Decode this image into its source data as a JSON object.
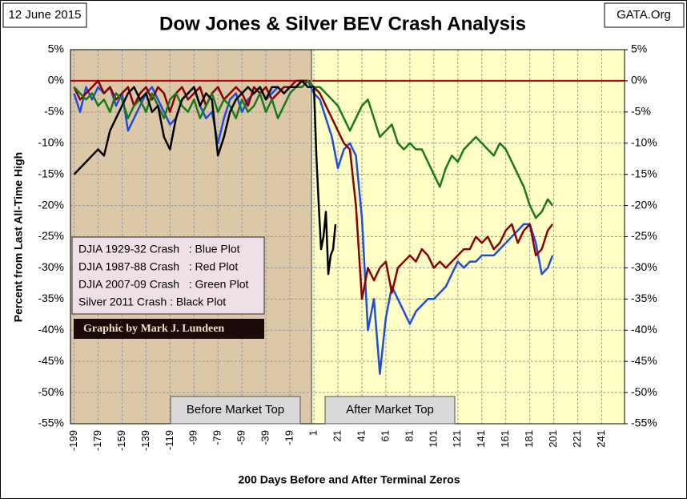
{
  "chart_data": {
    "type": "line",
    "title": "Dow Jones & Silver BEV Crash Analysis",
    "date_label": "12 June 2015",
    "source": "GATA.Org",
    "credit": "Graphic by Mark J. Lundeen",
    "region_labels": [
      "Before Market Top",
      "After Market Top"
    ],
    "xlabel": "200 Days Before and After Terminal Zeros",
    "ylabel": "Percent from Last All-Time High",
    "xlim": [
      -202,
      260
    ],
    "ylim": [
      -55,
      5
    ],
    "y2lim": [
      -55,
      5
    ],
    "grid": true,
    "xticks": [
      -199,
      -179,
      -159,
      -139,
      -119,
      -99,
      -79,
      -59,
      -39,
      -19,
      1,
      21,
      41,
      61,
      81,
      101,
      121,
      141,
      161,
      181,
      201,
      221,
      241
    ],
    "yticks": [
      {
        "value": 5,
        "label": "5%"
      },
      {
        "value": 0,
        "label": "0%"
      },
      {
        "value": -5,
        "label": "-5%"
      },
      {
        "value": -10,
        "label": "-10%"
      },
      {
        "value": -15,
        "label": "-15%"
      },
      {
        "value": -20,
        "label": "-20%"
      },
      {
        "value": -25,
        "label": "-25%"
      },
      {
        "value": -30,
        "label": "-30%"
      },
      {
        "value": -35,
        "label": "-35%"
      },
      {
        "value": -40,
        "label": "-40%"
      },
      {
        "value": -45,
        "label": "-45%"
      },
      {
        "value": -50,
        "label": "-50%"
      },
      {
        "value": -55,
        "label": "-55%"
      }
    ],
    "y2ticks": [
      {
        "value": 5,
        "label": "5%"
      },
      {
        "value": 0,
        "label": "0%"
      },
      {
        "value": -5,
        "label": "-5%"
      },
      {
        "value": -10,
        "label": "-10%"
      },
      {
        "value": -15,
        "label": "-15%"
      },
      {
        "value": -20,
        "label": "-20%"
      },
      {
        "value": -25,
        "label": "-25%"
      },
      {
        "value": -30,
        "label": "-30%"
      },
      {
        "value": -35,
        "label": "-35%"
      },
      {
        "value": -40,
        "label": "-40%"
      },
      {
        "value": -45,
        "label": "-45%"
      },
      {
        "value": -50,
        "label": "-50%"
      },
      {
        "value": -55,
        "label": "-55%"
      }
    ],
    "series": [
      {
        "name": "DJIA 1929-32 Crash   : Blue Plot",
        "color": "#1f4fd8",
        "x": [
          -199,
          -194,
          -189,
          -184,
          -179,
          -174,
          -169,
          -164,
          -159,
          -154,
          -149,
          -144,
          -139,
          -134,
          -129,
          -124,
          -119,
          -114,
          -109,
          -104,
          -99,
          -94,
          -89,
          -84,
          -79,
          -74,
          -69,
          -64,
          -59,
          -54,
          -49,
          -44,
          -39,
          -34,
          -29,
          -24,
          -19,
          -14,
          -9,
          -4,
          1,
          6,
          11,
          16,
          21,
          26,
          31,
          36,
          41,
          46,
          51,
          56,
          61,
          66,
          71,
          76,
          81,
          86,
          91,
          96,
          101,
          106,
          111,
          116,
          121,
          126,
          131,
          136,
          141,
          146,
          151,
          156,
          161,
          166,
          171,
          176,
          181,
          186,
          191,
          196,
          200
        ],
        "values": [
          -2,
          -5,
          -1,
          -3,
          -1,
          -2,
          -1,
          -4,
          -2,
          -8,
          -6,
          -4,
          -2,
          -1,
          -3,
          -5,
          -7,
          -6,
          -3,
          -2,
          -1,
          -4,
          -6,
          -5,
          -10,
          -6,
          -3,
          -2,
          -5,
          -3,
          -2,
          -1,
          -3,
          -2,
          -1,
          -2,
          -1,
          -1,
          0,
          0,
          -2,
          -3,
          -6,
          -9,
          -14,
          -11,
          -10,
          -12,
          -22,
          -40,
          -35,
          -47,
          -38,
          -33,
          -35,
          -37,
          -39,
          -37,
          -36,
          -35,
          -35,
          -34,
          -33,
          -31,
          -29,
          -30,
          -29,
          -29,
          -28,
          -28,
          -28,
          -27,
          -26,
          -25,
          -24,
          -23,
          -23,
          -26,
          -31,
          -30,
          -28
        ]
      },
      {
        "name": "DJIA 1987-88 Crash   : Red Plot",
        "color": "#8b0000",
        "x": [
          -199,
          -194,
          -189,
          -184,
          -179,
          -174,
          -169,
          -164,
          -159,
          -154,
          -149,
          -144,
          -139,
          -134,
          -129,
          -124,
          -119,
          -114,
          -109,
          -104,
          -99,
          -94,
          -89,
          -84,
          -79,
          -74,
          -69,
          -64,
          -59,
          -54,
          -49,
          -44,
          -39,
          -34,
          -29,
          -24,
          -19,
          -14,
          -9,
          -4,
          1,
          6,
          11,
          16,
          21,
          26,
          31,
          36,
          41,
          46,
          51,
          56,
          61,
          66,
          71,
          76,
          81,
          86,
          91,
          96,
          101,
          106,
          111,
          116,
          121,
          126,
          131,
          136,
          141,
          146,
          151,
          156,
          161,
          166,
          171,
          176,
          181,
          186,
          191,
          196,
          200
        ],
        "values": [
          -1,
          -3,
          -2,
          -1,
          0,
          -2,
          -1,
          -3,
          -2,
          -1,
          -4,
          -2,
          -1,
          -3,
          -1,
          -2,
          -5,
          -2,
          -1,
          -3,
          -2,
          -1,
          -4,
          -2,
          -1,
          -3,
          -2,
          -1,
          -2,
          -4,
          -1,
          -2,
          -1,
          -3,
          -2,
          -1,
          -1,
          0,
          0,
          0,
          -1,
          -2,
          -4,
          -6,
          -8,
          -10,
          -11,
          -20,
          -35,
          -30,
          -32,
          -30,
          -29,
          -34,
          -30,
          -29,
          -28,
          -29,
          -27,
          -28,
          -30,
          -29,
          -30,
          -29,
          -28,
          -27,
          -27,
          -25,
          -26,
          -25,
          -27,
          -26,
          -24,
          -23,
          -26,
          -24,
          -23,
          -28,
          -27,
          -24,
          -23
        ]
      },
      {
        "name": "DJIA 2007-09 Crash   : Green Plot",
        "color": "#1a7a1a",
        "x": [
          -199,
          -194,
          -189,
          -184,
          -179,
          -174,
          -169,
          -164,
          -159,
          -154,
          -149,
          -144,
          -139,
          -134,
          -129,
          -124,
          -119,
          -114,
          -109,
          -104,
          -99,
          -94,
          -89,
          -84,
          -79,
          -74,
          -69,
          -64,
          -59,
          -54,
          -49,
          -44,
          -39,
          -34,
          -29,
          -24,
          -19,
          -14,
          -9,
          -4,
          1,
          6,
          11,
          16,
          21,
          26,
          31,
          36,
          41,
          46,
          51,
          56,
          61,
          66,
          71,
          76,
          81,
          86,
          91,
          96,
          101,
          106,
          111,
          116,
          121,
          126,
          131,
          136,
          141,
          146,
          151,
          156,
          161,
          166,
          171,
          176,
          181,
          186,
          191,
          196,
          200
        ],
        "values": [
          -1,
          -2,
          -3,
          -2,
          -4,
          -3,
          -5,
          -2,
          -3,
          -6,
          -4,
          -3,
          -5,
          -2,
          -4,
          -6,
          -3,
          -2,
          -4,
          -5,
          -3,
          -6,
          -4,
          -2,
          -5,
          -3,
          -4,
          -6,
          -3,
          -5,
          -4,
          -2,
          -5,
          -3,
          -6,
          -4,
          -2,
          -1,
          -1,
          0,
          -1,
          -1,
          -2,
          -3,
          -4,
          -6,
          -8,
          -6,
          -4,
          -3,
          -6,
          -9,
          -8,
          -7,
          -10,
          -11,
          -10,
          -11,
          -11,
          -13,
          -15,
          -17,
          -14,
          -12,
          -13,
          -11,
          -10,
          -9,
          -10,
          -11,
          -12,
          -10,
          -11,
          -13,
          -15,
          -17,
          -20,
          -22,
          -21,
          -19,
          -20
        ]
      },
      {
        "name": "Silver 2011 Crash : Black Plot",
        "color": "#000000",
        "x": [
          -199,
          -194,
          -189,
          -184,
          -179,
          -174,
          -169,
          -164,
          -159,
          -154,
          -149,
          -144,
          -139,
          -134,
          -129,
          -124,
          -119,
          -114,
          -109,
          -104,
          -99,
          -94,
          -89,
          -84,
          -79,
          -74,
          -69,
          -64,
          -59,
          -54,
          -49,
          -44,
          -39,
          -34,
          -29,
          -24,
          -19,
          -14,
          -9,
          -4,
          1,
          3,
          5,
          7,
          9,
          11,
          13,
          15,
          17,
          19
        ],
        "values": [
          -15,
          -14,
          -13,
          -12,
          -11,
          -12,
          -8,
          -6,
          -4,
          -2,
          -1,
          -3,
          -2,
          -5,
          -4,
          -9,
          -11,
          -6,
          -3,
          -2,
          -1,
          -4,
          -2,
          -3,
          -12,
          -9,
          -5,
          -3,
          -2,
          -1,
          -2,
          -1,
          -3,
          -1,
          -1,
          -2,
          -1,
          -1,
          0,
          -1,
          -1,
          -12,
          -20,
          -27,
          -25,
          -21,
          -31,
          -28,
          -27,
          -23
        ]
      }
    ]
  }
}
